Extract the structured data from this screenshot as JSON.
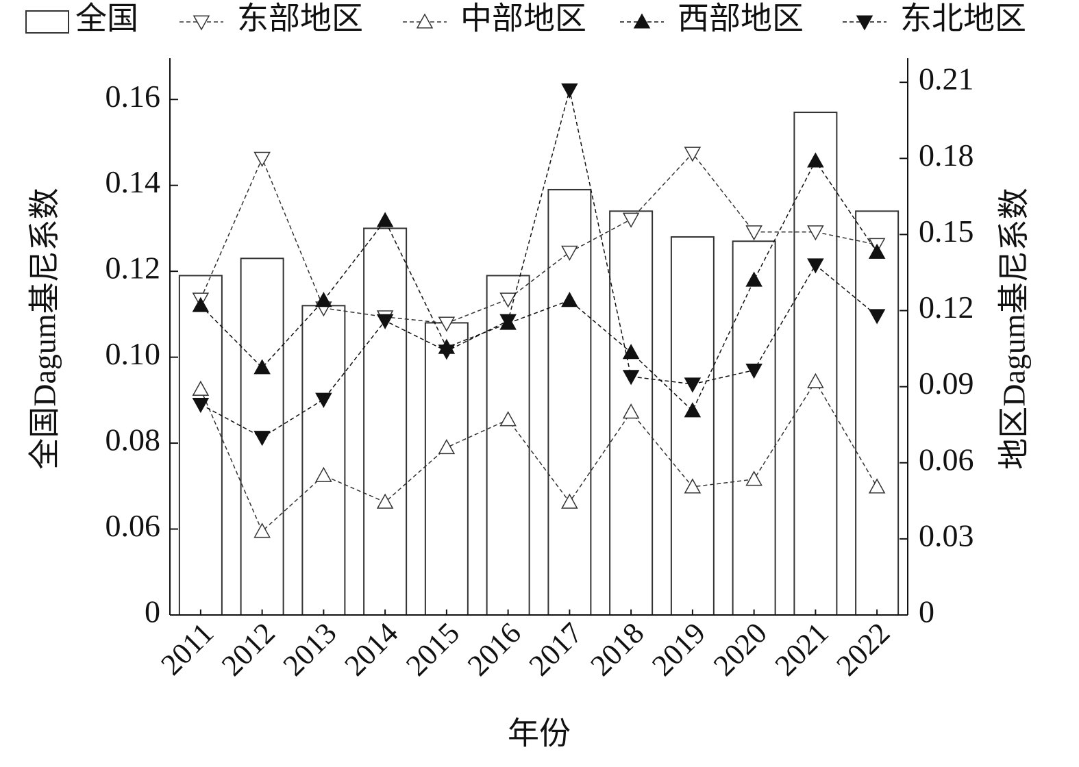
{
  "chart_data": {
    "type": "bar-line",
    "categories": [
      "2011",
      "2012",
      "2013",
      "2014",
      "2015",
      "2016",
      "2017",
      "2018",
      "2019",
      "2020",
      "2021",
      "2022"
    ],
    "x_label": "年份",
    "y_label": "全国Dagum基尼系数",
    "y2_label": "地区Dagum基尼系数",
    "ylim": [
      0.04,
      0.1696
    ],
    "yticks": [
      {
        "value": 0.04,
        "label": "0"
      },
      0.06,
      0.08,
      {
        "value": 0.1,
        "label": "0.10"
      },
      0.12,
      0.14,
      0.16
    ],
    "y2lim": [
      0,
      0.2195
    ],
    "y2ticks": [
      0,
      0.03,
      0.06,
      0.09,
      0.12,
      0.15,
      0.18,
      0.21
    ],
    "series": [
      {
        "name": "全国",
        "kind": "bar",
        "color": "#333333",
        "fill": "#ffffff",
        "values": [
          0.119,
          0.123,
          0.112,
          0.13,
          0.108,
          0.119,
          0.139,
          0.134,
          0.128,
          0.127,
          0.157,
          0.134
        ]
      },
      {
        "name": "东部地区",
        "kind": "line",
        "axis": "y2",
        "color": "#333333",
        "marker": "down",
        "fill": "#ffffff",
        "values": [
          0.1245,
          0.18,
          0.121,
          0.1175,
          0.115,
          0.1245,
          0.143,
          0.156,
          0.182,
          0.151,
          0.151,
          0.146
        ]
      },
      {
        "name": "中部地区",
        "kind": "line",
        "axis": "y2",
        "color": "#333333",
        "marker": "up",
        "fill": "#ffffff",
        "values": [
          0.089,
          0.033,
          0.055,
          0.0445,
          0.066,
          0.077,
          0.0445,
          0.08,
          0.0505,
          0.0535,
          0.092,
          0.0505
        ]
      },
      {
        "name": "西部地区",
        "kind": "line",
        "axis": "y2",
        "color": "#111111",
        "marker": "up",
        "fill": "#111111",
        "values": [
          0.122,
          0.0975,
          0.124,
          0.1555,
          0.1055,
          0.115,
          0.124,
          0.1035,
          0.0805,
          0.132,
          0.179,
          0.143
        ]
      },
      {
        "name": "东北地区",
        "kind": "line",
        "axis": "y2",
        "color": "#111111",
        "marker": "down",
        "fill": "#111111",
        "values": [
          0.083,
          0.07,
          0.085,
          0.116,
          0.104,
          0.116,
          0.207,
          0.094,
          0.091,
          0.0965,
          0.138,
          0.118
        ]
      }
    ]
  }
}
